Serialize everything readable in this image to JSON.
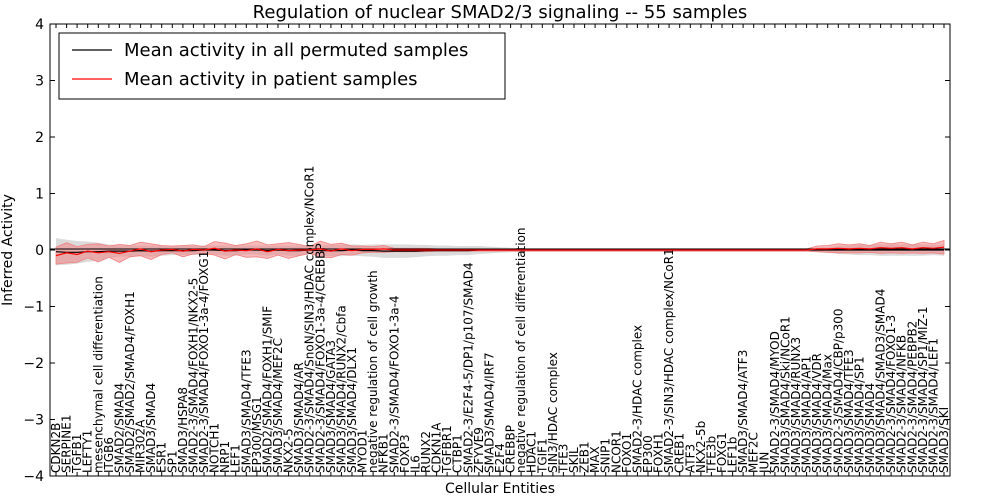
{
  "chart_data": {
    "type": "line",
    "title": "Regulation of nuclear SMAD2/3 signaling -- 55 samples",
    "xlabel": "Cellular Entities",
    "ylabel": "Inferred Activity",
    "ylim": [
      -4,
      4
    ],
    "yticks": [
      -4,
      -3,
      -2,
      -1,
      0,
      1,
      2,
      3,
      4
    ],
    "ytick_labels": [
      "−4",
      "−3",
      "−2",
      "−1",
      "0",
      "1",
      "2",
      "3",
      "4"
    ],
    "legend_position": "upper-left",
    "legend": [
      {
        "label": "Mean activity in all permuted samples",
        "color": "#000000"
      },
      {
        "label": "Mean activity in patient samples",
        "color": "#ff0000"
      }
    ],
    "colors": {
      "permuted_line": "#000000",
      "patient_line": "#ff0000",
      "permuted_band": "#bdbdbd",
      "patient_band": "#f08080"
    },
    "entities": [
      "CDKN2B",
      "SERPINE1",
      "TGFB1",
      "LEFTY1",
      "mesenchymal cell differentiation",
      "ITGB6",
      "SMAD2/SMAD4",
      "SMAD2/SMAD2/SMAD4/FOXH1",
      "MIR302A",
      "SMAD3/SMAD4",
      "ESR1",
      "SP1",
      "SMAD3/HSPA8",
      "SMAD2-3/SMAD4/FOXH1/NKX2-5",
      "SMAD2-3/SMAD4/FOXO1-3a-4/FOXG1",
      "NOTCH1",
      "NRP1",
      "LEF1",
      "SMAD3/SMAD4/TFE3",
      "EP300/MSG1",
      "SMAD2/SMAD4/FOXH1/SMIF",
      "SMAD3/SMAD4/MEF2C",
      "NKX2-5",
      "SMAD3/SMAD4/AR",
      "SMAD2-3/SMAD4/SnoN/SIN3/HDAC complex/NCoR1",
      "SMAD2-3/SMAD4/FOXO1-3a-4/CREBBP",
      "SMAD3/SMAD4/GATA3",
      "SMAD3/SMAD4/RUNX2/Cbfa",
      "SMAD3/SMAD4/DLX1",
      "MYOD1",
      "negative regulation of cell growth",
      "NFKB1",
      "SMAD2-3/SMAD4/FOXO1-3a-4",
      "FOXP3",
      "IL6",
      "RUNX2",
      "CDKN1A",
      "TGFBR1",
      "CTBP1",
      "SMAD2-3/E2F4-5/DP1/p107/SMAD4",
      "ZFYVE9",
      "SMAD3/SMAD4/IRF7",
      "E2F4",
      "CREBBP",
      "negative regulation of cell differentiation",
      "HDAC1",
      "TGIF1",
      "SIN3/HDAC complex",
      "TFE3",
      "SKIL",
      "ZEB1",
      "MAX",
      "SNIP1",
      "NCOR1",
      "FOXO1",
      "SMAD2-3/HDAC complex",
      "EP300",
      "FOXH1",
      "SMAD2-3/SIN3/HDAC complex/NCoR1",
      "CREB1",
      "ATF3",
      "NKX2-5b",
      "TFE3b",
      "FOXG1",
      "LEF1b",
      "SMAD3/SMAD4/ATF3",
      "MEF2C",
      "JUN",
      "SMAD2-3/SMAD4/MYOD",
      "SMAD3/SMAD4/Ski/NCoR1",
      "SMAD3/SMAD4/RUNX3",
      "SMAD3/SMAD4/AP1",
      "SMAD3/SMAD4/VDR",
      "SMAD3/SMAD4/Max",
      "SMAD2-3/SMAD4/CBP/p300",
      "SMAD3/SMAD4/TFE3",
      "SMAD3/SMAD4/SP1",
      "SMAD3/SMAD4",
      "SMAD3/SMAD4/SMAD3/SMAD4",
      "SMAD2-3/SMAD4/FOXO1-3",
      "SMAD2-3/SMAD4/NFKB",
      "SMAD2-3/SMAD4/PEBPB2",
      "SMAD2-3/SMAD4/SP1/MIZ-1",
      "SMAD2-3/SMAD4/LEF1",
      "SMAD3/SKI"
    ],
    "permuted_mean": [
      -0.03,
      -0.04,
      -0.04,
      -0.03,
      -0.03,
      -0.02,
      -0.02,
      -0.02,
      -0.01,
      -0.02,
      -0.01,
      -0.01,
      -0.01,
      -0.01,
      0,
      0,
      -0.01,
      -0.01,
      0,
      0,
      -0.01,
      0,
      -0.01,
      -0.01,
      0,
      -0.01,
      -0.01,
      -0.01,
      0,
      -0.01,
      -0.01,
      -0.02,
      -0.02,
      -0.02,
      -0.02,
      -0.01,
      -0.01,
      -0.01,
      -0.01,
      -0.01,
      0,
      0,
      0,
      0,
      0,
      0,
      0,
      0,
      0,
      0,
      0,
      0,
      0,
      0,
      0,
      0,
      0,
      0,
      0,
      0,
      0,
      0,
      0,
      0,
      0,
      0,
      0,
      0,
      0,
      0,
      0,
      0,
      0,
      0,
      0,
      0,
      0,
      0,
      0,
      0,
      0,
      0,
      0,
      0,
      0,
      0,
      0,
      0
    ],
    "permuted_std": [
      0.24,
      0.22,
      0.2,
      0.18,
      0.16,
      0.12,
      0.1,
      0.1,
      0.09,
      0.1,
      0.09,
      0.08,
      0.08,
      0.08,
      0.08,
      0.08,
      0.09,
      0.09,
      0.08,
      0.08,
      0.09,
      0.08,
      0.09,
      0.09,
      0.08,
      0.09,
      0.1,
      0.1,
      0.1,
      0.1,
      0.11,
      0.12,
      0.12,
      0.12,
      0.11,
      0.1,
      0.09,
      0.09,
      0.08,
      0.08,
      0.07,
      0.06,
      0.05,
      0.04,
      0.03,
      0.03,
      0.03,
      0.03,
      0.03,
      0.03,
      0.03,
      0.03,
      0.03,
      0.03,
      0.03,
      0.03,
      0.03,
      0.03,
      0.03,
      0.03,
      0.03,
      0.03,
      0.03,
      0.03,
      0.03,
      0.03,
      0.03,
      0.03,
      0.03,
      0.03,
      0.03,
      0.03,
      0.04,
      0.05,
      0.07,
      0.08,
      0.09,
      0.09,
      0.1,
      0.1,
      0.1,
      0.1,
      0.1,
      0.09,
      0.1,
      0.11,
      0.12,
      0.14
    ],
    "patient_mean": [
      -0.1,
      -0.05,
      -0.08,
      -0.02,
      -0.05,
      -0.03,
      -0.06,
      -0.02,
      0.02,
      -0.03,
      0,
      0.01,
      -0.02,
      0.01,
      0,
      0.03,
      -0.02,
      0,
      -0.01,
      0.02,
      -0.03,
      0.01,
      -0.01,
      0,
      0,
      0.02,
      -0.02,
      0.02,
      -0.01,
      0.01,
      0.01,
      0.02,
      0,
      0,
      0,
      0,
      0,
      0,
      0,
      0,
      0,
      0,
      0,
      0,
      0,
      0,
      0,
      0,
      0,
      0,
      0,
      0,
      0,
      0,
      0,
      0,
      0,
      0,
      0,
      0,
      0,
      0,
      0,
      0,
      0,
      0,
      0,
      0,
      0,
      0,
      0,
      0,
      0.02,
      0.02,
      0.03,
      0.02,
      0.03,
      0.02,
      0.04,
      0.03,
      0.04,
      0.02,
      0.04,
      0.03,
      0.05,
      0.06,
      0.05,
      0.06
    ],
    "patient_std": [
      0.15,
      0.18,
      0.14,
      0.12,
      0.16,
      0.1,
      0.16,
      0.1,
      0.12,
      0.14,
      0.08,
      0.06,
      0.1,
      0.08,
      0.06,
      0.12,
      0.14,
      0.08,
      0.12,
      0.14,
      0.12,
      0.1,
      0.14,
      0.1,
      0.06,
      0.14,
      0.12,
      0.1,
      0.08,
      0.06,
      0.05,
      0.06,
      0.03,
      0.03,
      0.03,
      0.03,
      0.02,
      0.02,
      0.02,
      0.02,
      0.02,
      0.02,
      0.02,
      0.02,
      0.02,
      0.02,
      0.02,
      0.02,
      0.02,
      0.02,
      0.02,
      0.02,
      0.02,
      0.02,
      0.02,
      0.02,
      0.02,
      0.02,
      0.02,
      0.02,
      0.02,
      0.02,
      0.02,
      0.02,
      0.02,
      0.02,
      0.02,
      0.02,
      0.02,
      0.02,
      0.02,
      0.02,
      0.05,
      0.06,
      0.08,
      0.07,
      0.08,
      0.06,
      0.1,
      0.08,
      0.1,
      0.07,
      0.1,
      0.08,
      0.12,
      0.14,
      0.16,
      0.18
    ]
  }
}
